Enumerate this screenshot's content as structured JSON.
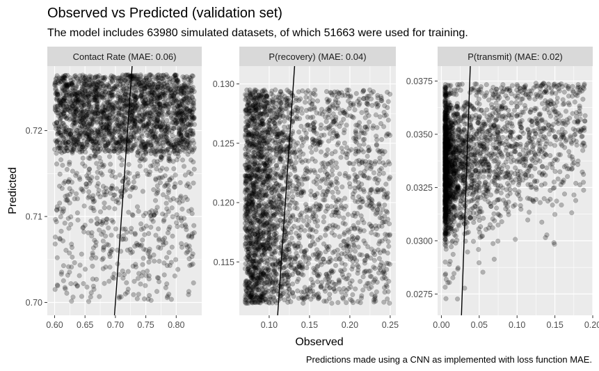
{
  "title": "Observed vs Predicted (validation set)",
  "subtitle": "The model includes 63980 simulated datasets, of which 51663 were used for training.",
  "caption": "Predictions made using a CNN as implemented with loss function MAE.",
  "xlabel": "Observed",
  "ylabel": "Predicted",
  "colors": {
    "panel_bg": "#ebebeb",
    "grid": "#ffffff",
    "strip_bg": "#d9d9d9",
    "point": "#000000",
    "line": "#000000"
  },
  "chart_data": [
    {
      "type": "scatter",
      "facet_label": "Contact Rate (MAE: 0.06)",
      "xlim": [
        0.588,
        0.842
      ],
      "ylim": [
        0.6985,
        0.7275
      ],
      "xticks": [
        0.6,
        0.65,
        0.7,
        0.75,
        0.8
      ],
      "xtick_labels": [
        "0.60",
        "0.65",
        "0.70",
        "0.75",
        "0.80"
      ],
      "yticks": [
        0.7,
        0.71,
        0.72
      ],
      "ytick_labels": [
        "0.70",
        "0.71",
        "0.72"
      ],
      "x_range": [
        0.6,
        0.83
      ],
      "y_range": [
        0.7,
        0.7265
      ],
      "y_dense_from": 0.7175,
      "identity_line": true,
      "point_opacity": 0.25
    },
    {
      "type": "scatter",
      "facet_label": "P(recovery) (MAE: 0.04)",
      "xlim": [
        0.063,
        0.257
      ],
      "ylim": [
        0.1105,
        0.1315
      ],
      "xticks": [
        0.1,
        0.15,
        0.2,
        0.25
      ],
      "xtick_labels": [
        "0.10",
        "0.15",
        "0.20",
        "0.25"
      ],
      "yticks": [
        0.115,
        0.12,
        0.125,
        0.13
      ],
      "ytick_labels": [
        "0.115",
        "0.120",
        "0.125",
        "0.130"
      ],
      "x_range": [
        0.07,
        0.25
      ],
      "y_range": [
        0.1115,
        0.1295
      ],
      "identity_line": true,
      "point_opacity": 0.25
    },
    {
      "type": "scatter",
      "facet_label": "P(transmit) (MAE: 0.02)",
      "xlim": [
        -0.005,
        0.2
      ],
      "ylim": [
        0.0265,
        0.0382
      ],
      "xticks": [
        0.0,
        0.05,
        0.1,
        0.15,
        0.2
      ],
      "xtick_labels": [
        "0.00",
        "0.05",
        "0.10",
        "0.15",
        "0.20"
      ],
      "yticks": [
        0.0275,
        0.03,
        0.0325,
        0.035,
        0.0375
      ],
      "ytick_labels": [
        "0.0275",
        "0.0300",
        "0.0325",
        "0.0350",
        "0.0375"
      ],
      "x_range": [
        0.005,
        0.19
      ],
      "y_range": [
        0.0272,
        0.0374
      ],
      "identity_line": true,
      "point_opacity": 0.25
    }
  ]
}
